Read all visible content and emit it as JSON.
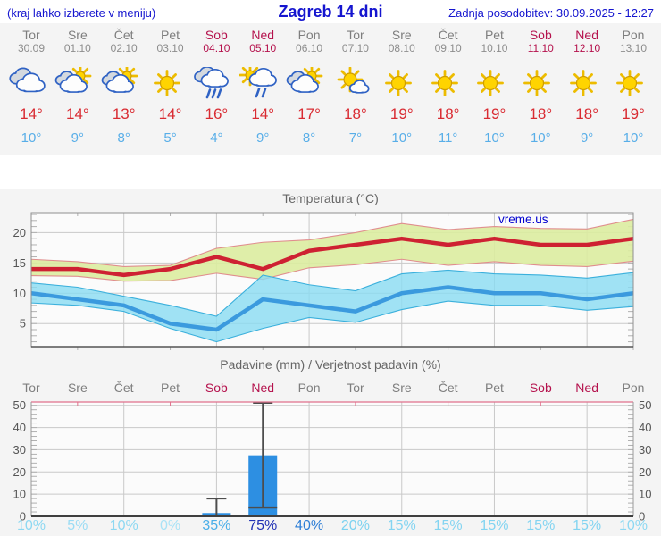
{
  "header": {
    "menu_hint": "(kraj lahko izberete v meniju)",
    "title": "Zagreb 14 dni",
    "last_update": "Zadnja posodobitev: 30.09.2025 - 12:27"
  },
  "colors": {
    "header_blue": "#1515cf",
    "day_gray": "#7e7e7e",
    "weekend_red": "#b5124d",
    "tmax_red": "#d92b32",
    "tmin_blue": "#58aee8",
    "grid": "#c9c9c9",
    "plot_bg": "#fbfbfb"
  },
  "days": [
    {
      "name": "Tor",
      "date": "30.09",
      "weekend": false,
      "icon": "cloudy",
      "tmax": "14°",
      "tmin": "10°"
    },
    {
      "name": "Sre",
      "date": "01.10",
      "weekend": false,
      "icon": "partly-cloudy",
      "tmax": "14°",
      "tmin": "9°"
    },
    {
      "name": "Čet",
      "date": "02.10",
      "weekend": false,
      "icon": "partly-cloudy",
      "tmax": "13°",
      "tmin": "8°"
    },
    {
      "name": "Pet",
      "date": "03.10",
      "weekend": false,
      "icon": "sunny",
      "tmax": "14°",
      "tmin": "5°"
    },
    {
      "name": "Sob",
      "date": "04.10",
      "weekend": true,
      "icon": "rain",
      "tmax": "16°",
      "tmin": "4°"
    },
    {
      "name": "Ned",
      "date": "05.10",
      "weekend": true,
      "icon": "sun-rain",
      "tmax": "14°",
      "tmin": "9°"
    },
    {
      "name": "Pon",
      "date": "06.10",
      "weekend": false,
      "icon": "partly-cloudy",
      "tmax": "17°",
      "tmin": "8°"
    },
    {
      "name": "Tor",
      "date": "07.10",
      "weekend": false,
      "icon": "mostly-sunny",
      "tmax": "18°",
      "tmin": "7°"
    },
    {
      "name": "Sre",
      "date": "08.10",
      "weekend": false,
      "icon": "sunny",
      "tmax": "19°",
      "tmin": "10°"
    },
    {
      "name": "Čet",
      "date": "09.10",
      "weekend": false,
      "icon": "sunny",
      "tmax": "18°",
      "tmin": "11°"
    },
    {
      "name": "Pet",
      "date": "10.10",
      "weekend": false,
      "icon": "sunny",
      "tmax": "19°",
      "tmin": "10°"
    },
    {
      "name": "Sob",
      "date": "11.10",
      "weekend": true,
      "icon": "sunny",
      "tmax": "18°",
      "tmin": "10°"
    },
    {
      "name": "Ned",
      "date": "12.10",
      "weekend": true,
      "icon": "sunny",
      "tmax": "18°",
      "tmin": "9°"
    },
    {
      "name": "Pon",
      "date": "13.10",
      "weekend": false,
      "icon": "sunny",
      "tmax": "19°",
      "tmin": "10°"
    }
  ],
  "chart_data": [
    {
      "type": "line",
      "title": "Temperatura (°C)",
      "watermark": "vreme.us",
      "ylim": [
        1.2,
        23.3
      ],
      "yticks": [
        5,
        10,
        15,
        20
      ],
      "grid": true,
      "x_gridline_every": 2,
      "series": [
        {
          "name": "max temperatura",
          "color": "#ce2132",
          "values": [
            14,
            14,
            13,
            14,
            16,
            14,
            17,
            18,
            19,
            18,
            19,
            18,
            18,
            19
          ],
          "band": {
            "fill": "#dceca0",
            "edge": "#e08e8e",
            "upper": [
              15.6,
              15.2,
              14.4,
              14.6,
              17.4,
              18.4,
              18.8,
              20.0,
              21.5,
              20.5,
              21.0,
              20.7,
              20.6,
              22.2
            ],
            "lower": [
              12.9,
              12.8,
              12.0,
              12.1,
              13.3,
              12.3,
              14.2,
              14.7,
              15.6,
              14.6,
              15.2,
              14.6,
              14.4,
              15.3
            ]
          }
        },
        {
          "name": "min temperatura",
          "color": "#3b9ade",
          "values": [
            10,
            9,
            8,
            5,
            4,
            9,
            8,
            7,
            10,
            11,
            10,
            10,
            9,
            10
          ],
          "band": {
            "fill": "#8adcf2",
            "edge": "#3bb0dc",
            "upper": [
              11.7,
              11.0,
              9.5,
              8.0,
              6.2,
              13.0,
              11.4,
              10.4,
              13.2,
              13.8,
              13.2,
              13.0,
              12.5,
              13.4
            ],
            "lower": [
              8.4,
              8.0,
              7.0,
              4.2,
              2.0,
              4.2,
              6.0,
              5.2,
              7.3,
              8.7,
              8.0,
              8.0,
              7.2,
              7.8
            ]
          }
        }
      ]
    },
    {
      "type": "bar",
      "title": "Padavine (mm) / Verjetnost padavin (%)",
      "categories": [
        "Tor",
        "Sre",
        "Čet",
        "Pet",
        "Sob",
        "Ned",
        "Pon",
        "Tor",
        "Sre",
        "Čet",
        "Pet",
        "Sob",
        "Ned",
        "Pon"
      ],
      "ylim": [
        0,
        51.5
      ],
      "yticks": [
        0,
        10,
        20,
        30,
        40,
        50
      ],
      "bar_color": "#2d8fe2",
      "values": [
        0,
        0,
        0,
        0,
        1.5,
        27.5,
        0,
        0,
        0,
        0,
        0,
        0,
        0,
        0
      ],
      "whiskers": [
        {
          "day": 4,
          "high": 8,
          "low": 0
        },
        {
          "day": 5,
          "high": 52,
          "low": 4
        }
      ],
      "probabilities": [
        {
          "label": "10%",
          "color": "#8dd8f2"
        },
        {
          "label": "5%",
          "color": "#9bdcf4"
        },
        {
          "label": "10%",
          "color": "#8dd8f2"
        },
        {
          "label": "0%",
          "color": "#a8e2f6"
        },
        {
          "label": "35%",
          "color": "#4cafe8"
        },
        {
          "label": "75%",
          "color": "#2030b4"
        },
        {
          "label": "40%",
          "color": "#2e7ed6"
        },
        {
          "label": "20%",
          "color": "#7cd2f0"
        },
        {
          "label": "15%",
          "color": "#83d4f1"
        },
        {
          "label": "15%",
          "color": "#83d4f1"
        },
        {
          "label": "15%",
          "color": "#83d4f1"
        },
        {
          "label": "15%",
          "color": "#83d4f1"
        },
        {
          "label": "15%",
          "color": "#83d4f1"
        },
        {
          "label": "10%",
          "color": "#8dd8f2"
        }
      ]
    }
  ]
}
